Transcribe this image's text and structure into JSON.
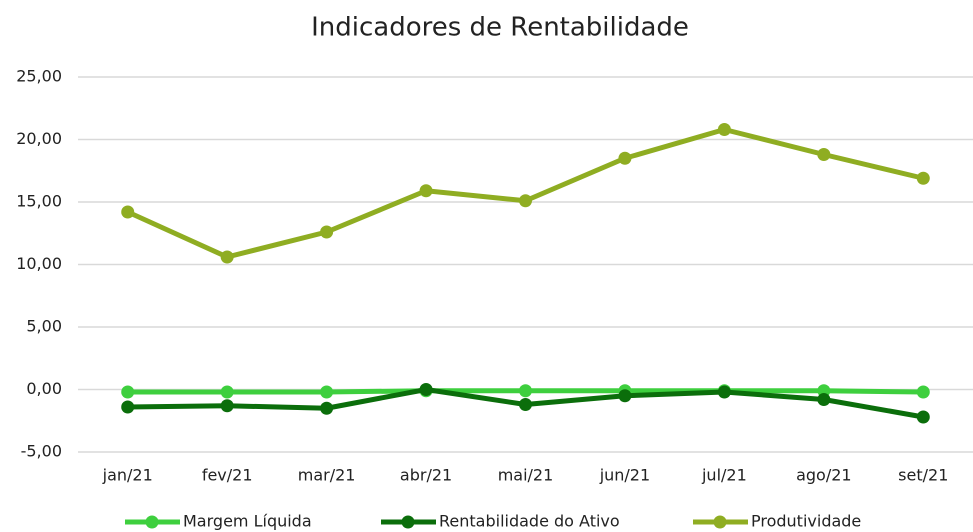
{
  "chart_data": {
    "type": "line",
    "title": "Indicadores de Rentabilidade",
    "categories": [
      "jan/21",
      "fev/21",
      "mar/21",
      "abr/21",
      "mai/21",
      "jun/21",
      "jul/21",
      "ago/21",
      "set/21"
    ],
    "series": [
      {
        "name": "Margem Líquida",
        "color": "#3ecf3e",
        "values": [
          -0.2,
          -0.2,
          -0.2,
          -0.1,
          -0.1,
          -0.1,
          -0.1,
          -0.1,
          -0.2
        ]
      },
      {
        "name": "Rentabilidade do Ativo",
        "color": "#0b6e0b",
        "values": [
          -1.4,
          -1.3,
          -1.5,
          0.0,
          -1.2,
          -0.5,
          -0.2,
          -0.8,
          -2.2
        ]
      },
      {
        "name": "Produtividade",
        "color": "#8fad22",
        "values": [
          14.2,
          10.6,
          12.6,
          15.9,
          15.1,
          18.5,
          20.8,
          18.8,
          16.9
        ]
      }
    ],
    "ylim": [
      -5,
      25
    ],
    "yticks": [
      {
        "value": -5,
        "label": "-5,00"
      },
      {
        "value": 0,
        "label": "0,00"
      },
      {
        "value": 5,
        "label": "5,00"
      },
      {
        "value": 10,
        "label": "10,00"
      },
      {
        "value": 15,
        "label": "15,00"
      },
      {
        "value": 20,
        "label": "20,00"
      },
      {
        "value": 25,
        "label": "25,00"
      }
    ],
    "grid": true,
    "legend": "bottom"
  }
}
